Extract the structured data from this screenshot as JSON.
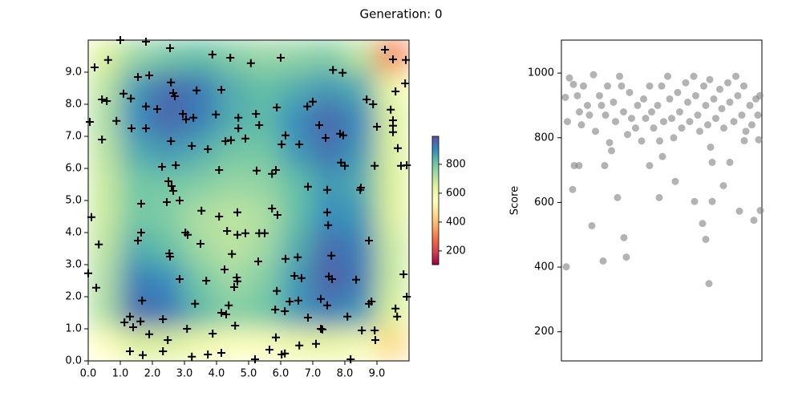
{
  "title": "Generation: 0",
  "chart_data": [
    {
      "type": "heatmap",
      "xlim": [
        0,
        10
      ],
      "ylim": [
        0,
        10
      ],
      "xticks": [
        {
          "value": 0,
          "label": "0.0"
        },
        {
          "value": 1,
          "label": "1.0"
        },
        {
          "value": 2,
          "label": "2.0"
        },
        {
          "value": 3,
          "label": "3.0"
        },
        {
          "value": 4,
          "label": "4.0"
        },
        {
          "value": 5,
          "label": "5.0"
        },
        {
          "value": 6,
          "label": "6.0"
        },
        {
          "value": 7,
          "label": "7.0"
        },
        {
          "value": 8,
          "label": "8.0"
        },
        {
          "value": 9,
          "label": "9.0"
        }
      ],
      "yticks": [
        {
          "value": 0,
          "label": "0.0"
        },
        {
          "value": 1,
          "label": "1.0"
        },
        {
          "value": 2,
          "label": "2.0"
        },
        {
          "value": 3,
          "label": "3.0"
        },
        {
          "value": 4,
          "label": "4.0"
        },
        {
          "value": 5,
          "label": "5.0"
        },
        {
          "value": 6,
          "label": "6.0"
        },
        {
          "value": 7,
          "label": "7.0"
        },
        {
          "value": 8,
          "label": "8.0"
        },
        {
          "value": 9,
          "label": "9.0"
        }
      ],
      "z": [
        [
          650,
          750,
          800,
          820,
          780,
          750,
          760,
          780,
          700,
          300
        ],
        [
          700,
          880,
          950,
          930,
          850,
          820,
          850,
          880,
          850,
          600
        ],
        [
          720,
          900,
          960,
          920,
          850,
          830,
          900,
          960,
          900,
          650
        ],
        [
          700,
          850,
          880,
          850,
          800,
          800,
          880,
          940,
          880,
          650
        ],
        [
          680,
          800,
          800,
          780,
          750,
          760,
          820,
          880,
          850,
          650
        ],
        [
          680,
          800,
          780,
          720,
          700,
          720,
          820,
          900,
          880,
          650
        ],
        [
          700,
          850,
          820,
          740,
          700,
          740,
          850,
          950,
          920,
          680
        ],
        [
          720,
          920,
          900,
          800,
          740,
          780,
          880,
          970,
          930,
          680
        ],
        [
          720,
          950,
          930,
          830,
          780,
          800,
          880,
          920,
          880,
          650
        ],
        [
          550,
          650,
          650,
          600,
          560,
          560,
          600,
          620,
          580,
          450
        ]
      ],
      "zlim": [
        105,
        994
      ],
      "zticks": [
        200,
        400,
        600,
        800
      ],
      "colormap": [
        "#9e0142",
        "#d53e4f",
        "#f46d43",
        "#fdae61",
        "#fee08b",
        "#ffffbf",
        "#e6f598",
        "#abdda4",
        "#66c2a5",
        "#3288bd",
        "#5e4fa2"
      ],
      "points": {
        "color": "#000000",
        "x": [
          1.0,
          1.8,
          2.55,
          0.62,
          0.2,
          3.87,
          4.43,
          5.07,
          6.0,
          9.25,
          9.5,
          9.9,
          7.63,
          7.93,
          9.88,
          9.58,
          1.55,
          1.9,
          2.58,
          2.65,
          2.7,
          3.38,
          4.15,
          1.1,
          1.33,
          0.58,
          0.43,
          2.15,
          1.8,
          0.88,
          0.05,
          1.35,
          1.8,
          2.95,
          3.05,
          3.28,
          3.98,
          4.68,
          4.68,
          5.23,
          5.33,
          5.88,
          6.83,
          7.0,
          7.2,
          8.68,
          8.88,
          9.43,
          9.5,
          9.5,
          9.0,
          9.5,
          7.85,
          7.95,
          7.4,
          6.15,
          6.03,
          6.58,
          0.43,
          2.58,
          3.23,
          3.73,
          4.28,
          4.45,
          4.9,
          9.65,
          9.75,
          9.93,
          8.93,
          7.88,
          8.0,
          2.3,
          2.73,
          4.08,
          5.25,
          5.85,
          5.73,
          2.5,
          2.6,
          2.65,
          6.85,
          7.45,
          8.5,
          8.48,
          1.65,
          2.45,
          2.85,
          3.53,
          5.73,
          5.9,
          0.1,
          4.08,
          4.65,
          4.65,
          7.45,
          7.48,
          4.33,
          4.9,
          5.33,
          5.5,
          3.03,
          3.1,
          1.65,
          1.55,
          0.33,
          3.5,
          8.75,
          4.48,
          7.58,
          2.53,
          2.55,
          5.3,
          6.15,
          6.53,
          4.25,
          2.85,
          3.68,
          4.63,
          4.65,
          4.55,
          6.43,
          6.65,
          7.5,
          7.6,
          8.35,
          9.83,
          0.0,
          0.25,
          5.88,
          6.28,
          6.55,
          7.25,
          7.45,
          8.75,
          8.83,
          9.93,
          9.58,
          1.68,
          3.33,
          4.38,
          5.83,
          6.13,
          4.15,
          4.3,
          1.3,
          1.13,
          1.63,
          1.4,
          1.9,
          2.33,
          4.58,
          6.85,
          8.08,
          9.63,
          3.08,
          3.88,
          7.25,
          7.3,
          8.53,
          8.93,
          8.95,
          5.85,
          2.48,
          1.3,
          1.7,
          2.33,
          3.23,
          3.73,
          4.15,
          5.65,
          6.03,
          6.13,
          6.58,
          7.1,
          8.18,
          5.2
        ],
        "y": [
          10.0,
          9.95,
          9.75,
          9.38,
          9.15,
          9.55,
          9.45,
          9.28,
          9.45,
          9.7,
          9.4,
          9.38,
          9.07,
          8.98,
          8.65,
          8.4,
          8.85,
          8.9,
          8.68,
          8.35,
          8.25,
          8.43,
          8.45,
          8.33,
          8.18,
          8.1,
          8.15,
          7.85,
          7.93,
          7.48,
          7.45,
          7.25,
          7.25,
          7.7,
          7.53,
          7.58,
          7.68,
          7.58,
          7.25,
          7.7,
          7.35,
          7.9,
          7.93,
          8.08,
          7.35,
          8.15,
          8.0,
          7.83,
          7.5,
          7.33,
          7.3,
          7.13,
          7.08,
          7.03,
          6.95,
          7.03,
          6.75,
          6.75,
          6.9,
          6.85,
          6.7,
          6.6,
          6.85,
          6.88,
          6.93,
          6.63,
          6.08,
          6.1,
          6.08,
          6.18,
          6.08,
          6.05,
          6.1,
          5.95,
          5.93,
          5.95,
          5.83,
          5.6,
          5.45,
          5.3,
          5.43,
          5.33,
          5.4,
          5.33,
          4.9,
          4.95,
          5.0,
          4.68,
          4.75,
          4.55,
          4.48,
          4.5,
          4.63,
          3.93,
          4.63,
          4.23,
          4.05,
          3.98,
          3.98,
          3.98,
          4.0,
          3.93,
          4.0,
          3.75,
          3.63,
          3.65,
          3.75,
          3.33,
          3.28,
          3.35,
          3.25,
          3.1,
          3.18,
          3.23,
          2.85,
          2.55,
          2.5,
          2.6,
          2.48,
          2.3,
          2.65,
          2.58,
          2.63,
          2.55,
          2.53,
          2.7,
          2.73,
          2.28,
          2.18,
          1.85,
          1.88,
          1.93,
          1.73,
          1.78,
          1.85,
          2.0,
          1.63,
          1.88,
          1.78,
          1.73,
          1.6,
          1.55,
          1.5,
          1.45,
          1.38,
          1.2,
          1.23,
          1.05,
          0.83,
          1.3,
          1.1,
          1.35,
          1.38,
          1.38,
          1.0,
          0.85,
          1.0,
          0.98,
          0.95,
          0.95,
          0.65,
          0.73,
          0.65,
          0.3,
          0.18,
          0.3,
          0.13,
          0.2,
          0.25,
          0.35,
          0.2,
          0.23,
          0.48,
          0.53,
          0.05,
          0.05
        ]
      }
    },
    {
      "type": "scatter",
      "ylabel": "Score",
      "xlim": [
        0,
        100
      ],
      "ylim": [
        110,
        1102
      ],
      "yticks": [
        200,
        400,
        600,
        800,
        1000
      ],
      "color": "#808080",
      "alpha": 0.6,
      "x": [
        2.4,
        5.6,
        6.4,
        8.8,
        15.2,
        20.8,
        21.6,
        28,
        31.2,
        32.4,
        44,
        48.8,
        50.4,
        56.8,
        66.4,
        70.4,
        72,
        73.6,
        75.2,
        75.2,
        74.4,
        80.8,
        84,
        88.8,
        96,
        99.2,
        98.4,
        91.2,
        2,
        4,
        3,
        6,
        8,
        9,
        10,
        11,
        13,
        14,
        16,
        17,
        19,
        20,
        22,
        23,
        24,
        25,
        26,
        27,
        29,
        30,
        31,
        33,
        34,
        35,
        37,
        38,
        40,
        41,
        42,
        44,
        45,
        46,
        48,
        49,
        50,
        51,
        53,
        54,
        55,
        56,
        58,
        59,
        60,
        62,
        63,
        64,
        66,
        67,
        68,
        69,
        71,
        72,
        73,
        74,
        76,
        77,
        79,
        80,
        81,
        83,
        84,
        86,
        87,
        88,
        90,
        91,
        92,
        94,
        95,
        97,
        98,
        99
      ],
      "values": [
        401,
        640,
        714,
        714,
        528,
        419,
        714,
        615,
        491,
        431,
        714,
        615,
        742,
        665,
        603,
        535,
        486,
        349,
        603,
        724,
        771,
        652,
        724,
        573,
        545,
        575,
        794,
        791,
        925,
        985,
        850,
        965,
        930,
        880,
        840,
        960,
        900,
        870,
        995,
        820,
        930,
        900,
        870,
        960,
        785,
        760,
        910,
        850,
        990,
        960,
        880,
        810,
        940,
        860,
        830,
        900,
        790,
        920,
        860,
        960,
        880,
        830,
        900,
        790,
        960,
        850,
        990,
        920,
        860,
        800,
        940,
        880,
        830,
        970,
        910,
        850,
        990,
        930,
        870,
        820,
        960,
        900,
        840,
        980,
        920,
        860,
        950,
        890,
        830,
        970,
        910,
        850,
        990,
        930,
        870,
        960,
        820,
        900,
        840,
        920,
        870,
        930
      ]
    }
  ]
}
